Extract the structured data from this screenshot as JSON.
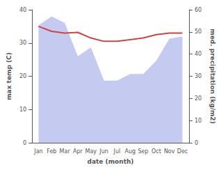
{
  "chart_data": {
    "type": "line",
    "xlabel": "date (month)",
    "ylabel": "max temp (C)",
    "y2label": "med. precipitation (kg/m2)",
    "categories": [
      "Jan",
      "Feb",
      "Mar",
      "Apr",
      "May",
      "Jun",
      "Jul",
      "Aug",
      "Sep",
      "Oct",
      "Nov",
      "Dec"
    ],
    "series": [
      {
        "type": "area",
        "axis": "y2",
        "color": "#c5caf0",
        "values": [
          53,
          57,
          54,
          39,
          43,
          28,
          28,
          31,
          31,
          37,
          47,
          48
        ]
      },
      {
        "type": "line",
        "color": "#cc4444",
        "values": [
          35.0,
          33.5,
          33.0,
          33.2,
          31.5,
          30.5,
          30.5,
          31.0,
          31.5,
          32.5,
          33.0,
          33.0
        ]
      }
    ],
    "ylim": [
      0,
      40
    ],
    "yticks": [
      0,
      10,
      20,
      30,
      40
    ],
    "y2lim": [
      0,
      60
    ],
    "y2ticks": [
      0,
      10,
      20,
      30,
      40,
      50,
      60
    ],
    "grid": false
  }
}
